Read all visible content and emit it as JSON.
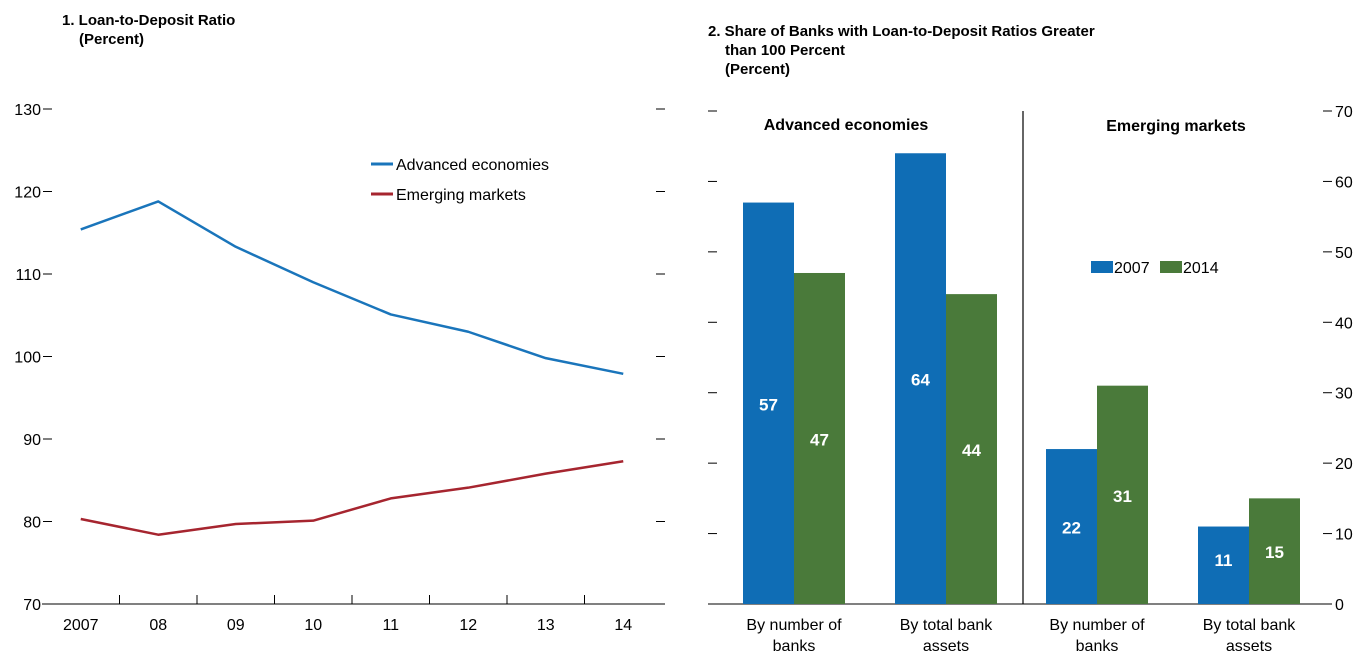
{
  "panel1": {
    "title_line1": "1. Loan-to-Deposit Ratio",
    "title_line2": "(Percent)"
  },
  "panel2": {
    "title_line1": "2. Share of Banks with Loan-to-Deposit Ratios Greater",
    "title_line2": "than 100 Percent",
    "title_line3": "(Percent)"
  },
  "chart_data": [
    {
      "type": "line",
      "title": "1. Loan-to-Deposit Ratio (Percent)",
      "x": [
        "2007",
        "08",
        "09",
        "10",
        "11",
        "12",
        "13",
        "14"
      ],
      "ylim": [
        70,
        130
      ],
      "yticks": [
        70,
        80,
        90,
        100,
        110,
        120,
        130
      ],
      "grid": false,
      "legend_position": "top-right",
      "series": [
        {
          "name": "Advanced economies",
          "color": "#1a75bb",
          "values": [
            115.4,
            118.8,
            113.3,
            109.0,
            105.1,
            103.0,
            99.8,
            97.9
          ]
        },
        {
          "name": "Emerging markets",
          "color": "#a6252f",
          "values": [
            80.3,
            78.4,
            79.7,
            80.1,
            82.8,
            84.1,
            85.8,
            87.3
          ]
        }
      ]
    },
    {
      "type": "bar",
      "title": "2. Share of Banks with Loan-to-Deposit Ratios Greater than 100 Percent (Percent)",
      "groups": [
        "Advanced economies",
        "Emerging markets"
      ],
      "categories": [
        [
          "By number of",
          "banks"
        ],
        [
          "By total bank",
          "assets"
        ],
        [
          "By number of",
          "banks"
        ],
        [
          "By total bank",
          "assets"
        ]
      ],
      "ylim": [
        0,
        70
      ],
      "yticks": [
        0,
        10,
        20,
        30,
        40,
        50,
        60,
        70
      ],
      "legend_position": "center-right",
      "series": [
        {
          "name": "2007",
          "color": "#0f6db5",
          "values": [
            57,
            64,
            22,
            11
          ]
        },
        {
          "name": "2014",
          "color": "#4a7a3a",
          "values": [
            47,
            44,
            31,
            15
          ]
        }
      ]
    }
  ]
}
